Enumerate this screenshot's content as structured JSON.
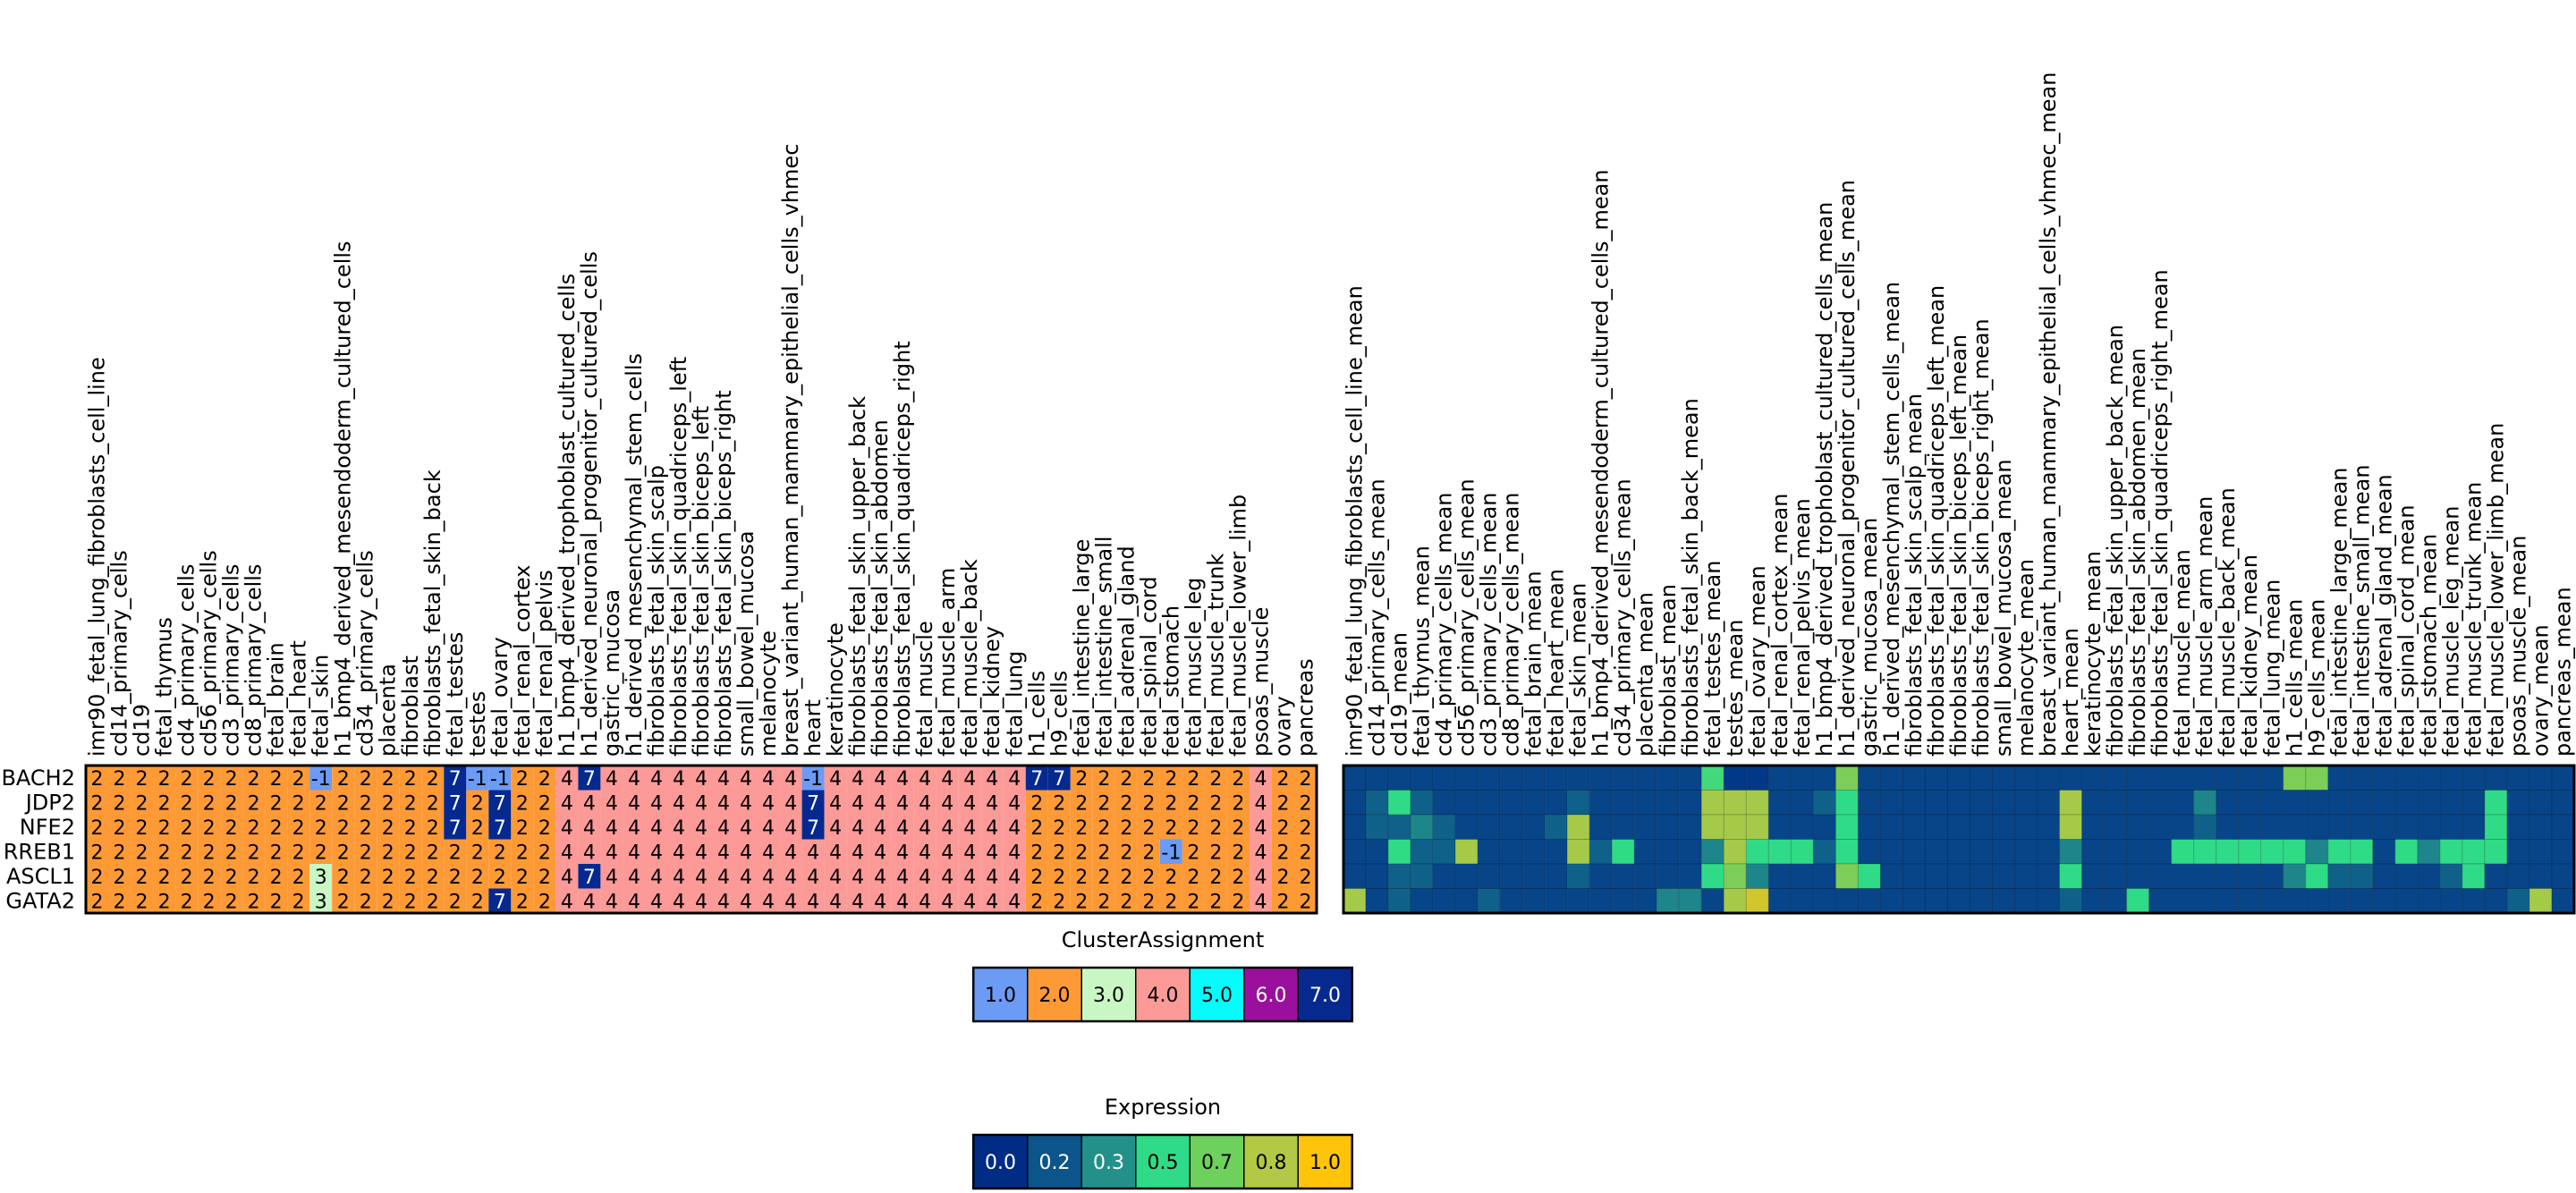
{
  "chart_data": [
    {
      "type": "heatmap",
      "title": "",
      "rows": [
        "BACH2",
        "JDP2",
        "NFE2",
        "RREB1",
        "ASCL1",
        "GATA2"
      ],
      "columns": [
        "imr90_fetal_lung_fibroblasts_cell_line",
        "cd14_primary_cells",
        "cd19",
        "fetal_thymus",
        "cd4_primary_cells",
        "cd56_primary_cells",
        "cd3_primary_cells",
        "cd8_primary_cells",
        "fetal_brain",
        "fetal_heart",
        "fetal_skin",
        "h1_bmp4_derived_mesendoderm_cultured_cells",
        "cd34_primary_cells",
        "placenta",
        "fibroblast",
        "fibroblasts_fetal_skin_back",
        "fetal_testes",
        "testes",
        "fetal_ovary",
        "fetal_renal_cortex",
        "fetal_renal_pelvis",
        "h1_bmp4_derived_trophoblast_cultured_cells",
        "h1_derived_neuronal_progenitor_cultured_cells",
        "gastric_mucosa",
        "h1_derived_mesenchymal_stem_cells",
        "fibroblasts_fetal_skin_scalp",
        "fibroblasts_fetal_skin_quadriceps_left",
        "fibroblasts_fetal_skin_biceps_left",
        "fibroblasts_fetal_skin_biceps_right",
        "small_bowel_mucosa",
        "melanocyte",
        "breast_variant_human_mammary_epithelial_cells_vhmec",
        "heart",
        "keratinocyte",
        "fibroblasts_fetal_skin_upper_back",
        "fibroblasts_fetal_skin_abdomen",
        "fibroblasts_fetal_skin_quadriceps_right",
        "fetal_muscle",
        "fetal_muscle_arm",
        "fetal_muscle_back",
        "fetal_kidney",
        "fetal_lung",
        "h1_cells",
        "h9_cells",
        "fetal_intestine_large",
        "fetal_intestine_small",
        "fetal_adrenal_gland",
        "fetal_spinal_cord",
        "fetal_stomach",
        "fetal_muscle_leg",
        "fetal_muscle_trunk",
        "fetal_muscle_lower_limb",
        "psoas_muscle",
        "ovary",
        "pancreas"
      ],
      "values": [
        [
          2,
          2,
          2,
          2,
          2,
          2,
          2,
          2,
          2,
          2,
          -1,
          2,
          2,
          2,
          2,
          2,
          7,
          -1,
          -1,
          2,
          2,
          4,
          7,
          4,
          4,
          4,
          4,
          4,
          4,
          4,
          4,
          4,
          -1,
          4,
          4,
          4,
          4,
          4,
          4,
          4,
          4,
          4,
          7,
          7,
          2,
          2,
          2,
          2,
          2,
          2,
          2,
          2,
          4,
          2,
          2
        ],
        [
          2,
          2,
          2,
          2,
          2,
          2,
          2,
          2,
          2,
          2,
          2,
          2,
          2,
          2,
          2,
          2,
          7,
          2,
          7,
          2,
          2,
          4,
          4,
          4,
          4,
          4,
          4,
          4,
          4,
          4,
          4,
          4,
          7,
          4,
          4,
          4,
          4,
          4,
          4,
          4,
          4,
          4,
          2,
          2,
          2,
          2,
          2,
          2,
          2,
          2,
          2,
          2,
          4,
          2,
          2
        ],
        [
          2,
          2,
          2,
          2,
          2,
          2,
          2,
          2,
          2,
          2,
          2,
          2,
          2,
          2,
          2,
          2,
          7,
          2,
          7,
          2,
          2,
          4,
          4,
          4,
          4,
          4,
          4,
          4,
          4,
          4,
          4,
          4,
          7,
          4,
          4,
          4,
          4,
          4,
          4,
          4,
          4,
          4,
          2,
          2,
          2,
          2,
          2,
          2,
          2,
          2,
          2,
          2,
          4,
          2,
          2
        ],
        [
          2,
          2,
          2,
          2,
          2,
          2,
          2,
          2,
          2,
          2,
          2,
          2,
          2,
          2,
          2,
          2,
          2,
          2,
          2,
          2,
          2,
          4,
          4,
          4,
          4,
          4,
          4,
          4,
          4,
          4,
          4,
          4,
          4,
          4,
          4,
          4,
          4,
          4,
          4,
          4,
          4,
          4,
          2,
          2,
          2,
          2,
          2,
          2,
          -1,
          2,
          2,
          2,
          4,
          2,
          2
        ],
        [
          2,
          2,
          2,
          2,
          2,
          2,
          2,
          2,
          2,
          2,
          3,
          2,
          2,
          2,
          2,
          2,
          2,
          2,
          2,
          2,
          2,
          4,
          7,
          4,
          4,
          4,
          4,
          4,
          4,
          4,
          4,
          4,
          4,
          4,
          4,
          4,
          4,
          4,
          4,
          4,
          4,
          4,
          2,
          2,
          2,
          2,
          2,
          2,
          2,
          2,
          2,
          2,
          4,
          2,
          2
        ],
        [
          2,
          2,
          2,
          2,
          2,
          2,
          2,
          2,
          2,
          2,
          3,
          2,
          2,
          2,
          2,
          2,
          2,
          2,
          7,
          2,
          2,
          4,
          4,
          4,
          4,
          4,
          4,
          4,
          4,
          4,
          4,
          4,
          4,
          4,
          4,
          4,
          4,
          4,
          4,
          4,
          4,
          4,
          2,
          2,
          2,
          2,
          2,
          2,
          2,
          2,
          2,
          2,
          4,
          2,
          2
        ]
      ],
      "cell_colors": {
        "-1": "#6b9bf5",
        "1": "#6b9bf5",
        "2": "#fd9a36",
        "3": "#c9f7c4",
        "4": "#fc9a97",
        "5": "#06fbfc",
        "6": "#9a0f9b",
        "7": "#05298f"
      },
      "legend": {
        "title": "ClusterAssignment",
        "entries": [
          "1.0",
          "2.0",
          "3.0",
          "4.0",
          "5.0",
          "6.0",
          "7.0"
        ],
        "colors": [
          "#6b9bf5",
          "#fd9a36",
          "#c9f7c4",
          "#fc9a97",
          "#06fbfc",
          "#9a0f9b",
          "#05298f"
        ],
        "placement": "bottom-center"
      }
    },
    {
      "type": "heatmap",
      "title": "",
      "rows": [
        "BACH2",
        "JDP2",
        "NFE2",
        "RREB1",
        "ASCL1",
        "GATA2"
      ],
      "columns": [
        "imr90_fetal_lung_fibroblasts_cell_line_mean",
        "cd14_primary_cells_mean",
        "cd19_mean",
        "fetal_thymus_mean",
        "cd4_primary_cells_mean",
        "cd56_primary_cells_mean",
        "cd3_primary_cells_mean",
        "cd8_primary_cells_mean",
        "fetal_brain_mean",
        "fetal_heart_mean",
        "fetal_skin_mean",
        "h1_bmp4_derived_mesendoderm_cultured_cells_mean",
        "cd34_primary_cells_mean",
        "placenta_mean",
        "fibroblast_mean",
        "fibroblasts_fetal_skin_back_mean",
        "fetal_testes_mean",
        "testes_mean",
        "fetal_ovary_mean",
        "fetal_renal_cortex_mean",
        "fetal_renal_pelvis_mean",
        "h1_bmp4_derived_trophoblast_cultured_cells_mean",
        "h1_derived_neuronal_progenitor_cultured_cells_mean",
        "gastric_mucosa_mean",
        "h1_derived_mesenchymal_stem_cells_mean",
        "fibroblasts_fetal_skin_scalp_mean",
        "fibroblasts_fetal_skin_quadriceps_left_mean",
        "fibroblasts_fetal_skin_biceps_left_mean",
        "fibroblasts_fetal_skin_biceps_right_mean",
        "small_bowel_mucosa_mean",
        "melanocyte_mean",
        "breast_variant_human_mammary_epithelial_cells_vhmec_mean",
        "heart_mean",
        "keratinocyte_mean",
        "fibroblasts_fetal_skin_upper_back_mean",
        "fibroblasts_fetal_skin_abdomen_mean",
        "fibroblasts_fetal_skin_quadriceps_right_mean",
        "fetal_muscle_mean",
        "fetal_muscle_arm_mean",
        "fetal_muscle_back_mean",
        "fetal_kidney_mean",
        "fetal_lung_mean",
        "h1_cells_mean",
        "h9_cells_mean",
        "fetal_intestine_large_mean",
        "fetal_intestine_small_mean",
        "fetal_adrenal_gland_mean",
        "fetal_spinal_cord_mean",
        "fetal_stomach_mean",
        "fetal_muscle_leg_mean",
        "fetal_muscle_trunk_mean",
        "fetal_muscle_lower_limb_mean",
        "psoas_muscle_mean",
        "ovary_mean",
        "pancreas_mean"
      ],
      "values": [
        [
          0.1,
          0.1,
          0.1,
          0.1,
          0.1,
          0.1,
          0.1,
          0.1,
          0.1,
          0.1,
          0.1,
          0.1,
          0.1,
          0.1,
          0.1,
          0.1,
          0.55,
          0.05,
          0.05,
          0.1,
          0.1,
          0.1,
          0.7,
          0.1,
          0.1,
          0.1,
          0.1,
          0.1,
          0.1,
          0.1,
          0.1,
          0.1,
          0.1,
          0.1,
          0.1,
          0.1,
          0.1,
          0.1,
          0.1,
          0.1,
          0.1,
          0.1,
          0.7,
          0.7,
          0.1,
          0.1,
          0.1,
          0.1,
          0.1,
          0.1,
          0.1,
          0.1,
          0.1,
          0.1,
          0.1
        ],
        [
          0.1,
          0.2,
          0.5,
          0.2,
          0.1,
          0.1,
          0.1,
          0.1,
          0.1,
          0.1,
          0.2,
          0.1,
          0.1,
          0.1,
          0.1,
          0.1,
          0.8,
          0.8,
          0.8,
          0.1,
          0.1,
          0.2,
          0.5,
          0.1,
          0.1,
          0.1,
          0.1,
          0.1,
          0.1,
          0.1,
          0.1,
          0.1,
          0.8,
          0.1,
          0.1,
          0.1,
          0.1,
          0.1,
          0.3,
          0.1,
          0.1,
          0.1,
          0.1,
          0.1,
          0.1,
          0.1,
          0.1,
          0.1,
          0.1,
          0.1,
          0.1,
          0.5,
          0.1,
          0.1,
          0.1
        ],
        [
          0.1,
          0.2,
          0.2,
          0.3,
          0.2,
          0.1,
          0.1,
          0.1,
          0.1,
          0.2,
          0.8,
          0.1,
          0.1,
          0.1,
          0.1,
          0.1,
          0.8,
          0.8,
          0.8,
          0.1,
          0.1,
          0.1,
          0.5,
          0.1,
          0.1,
          0.1,
          0.1,
          0.1,
          0.1,
          0.1,
          0.1,
          0.1,
          0.8,
          0.1,
          0.1,
          0.1,
          0.1,
          0.1,
          0.2,
          0.1,
          0.1,
          0.1,
          0.1,
          0.1,
          0.1,
          0.1,
          0.1,
          0.1,
          0.1,
          0.1,
          0.1,
          0.5,
          0.1,
          0.1,
          0.1
        ],
        [
          0.1,
          0.1,
          0.5,
          0.2,
          0.2,
          0.8,
          0.1,
          0.1,
          0.1,
          0.1,
          0.8,
          0.2,
          0.5,
          0.1,
          0.1,
          0.1,
          0.3,
          0.8,
          0.5,
          0.5,
          0.5,
          0.2,
          0.5,
          0.1,
          0.1,
          0.1,
          0.1,
          0.1,
          0.1,
          0.1,
          0.1,
          0.1,
          0.3,
          0.1,
          0.1,
          0.1,
          0.1,
          0.5,
          0.5,
          0.5,
          0.5,
          0.5,
          0.5,
          0.3,
          0.5,
          0.5,
          0.1,
          0.5,
          0.3,
          0.5,
          0.5,
          0.5,
          0.1,
          0.1,
          0.1
        ],
        [
          0.1,
          0.1,
          0.2,
          0.2,
          0.1,
          0.1,
          0.1,
          0.1,
          0.1,
          0.1,
          0.2,
          0.1,
          0.1,
          0.1,
          0.1,
          0.1,
          0.5,
          0.7,
          0.3,
          0.1,
          0.1,
          0.1,
          0.7,
          0.5,
          0.1,
          0.1,
          0.1,
          0.1,
          0.1,
          0.1,
          0.1,
          0.1,
          0.5,
          0.1,
          0.1,
          0.1,
          0.1,
          0.1,
          0.1,
          0.1,
          0.1,
          0.1,
          0.3,
          0.5,
          0.2,
          0.2,
          0.1,
          0.1,
          0.1,
          0.2,
          0.5,
          0.1,
          0.1,
          0.1,
          0.1
        ],
        [
          0.8,
          0.1,
          0.2,
          0.1,
          0.1,
          0.1,
          0.2,
          0.1,
          0.1,
          0.1,
          0.1,
          0.1,
          0.1,
          0.1,
          0.3,
          0.3,
          0.1,
          0.8,
          0.9,
          0.1,
          0.1,
          0.1,
          0.1,
          0.1,
          0.1,
          0.1,
          0.1,
          0.1,
          0.1,
          0.1,
          0.1,
          0.1,
          0.2,
          0.1,
          0.1,
          0.5,
          0.1,
          0.1,
          0.1,
          0.1,
          0.1,
          0.1,
          0.1,
          0.1,
          0.1,
          0.1,
          0.1,
          0.1,
          0.1,
          0.1,
          0.1,
          0.1,
          0.2,
          0.8,
          0.1
        ]
      ],
      "colorscale": [
        "#002c85",
        "#0b558a",
        "#23918a",
        "#30db87",
        "#6ed05d",
        "#b3c844",
        "#fec40a"
      ],
      "legend": {
        "title": "Expression",
        "entries": [
          "0.0",
          "0.2",
          "0.3",
          "0.5",
          "0.7",
          "0.8",
          "1.0"
        ],
        "colors": [
          "#002c85",
          "#0b558a",
          "#23918a",
          "#30db87",
          "#6ed05d",
          "#b3c844",
          "#fec40a"
        ],
        "placement": "bottom-center"
      }
    }
  ]
}
